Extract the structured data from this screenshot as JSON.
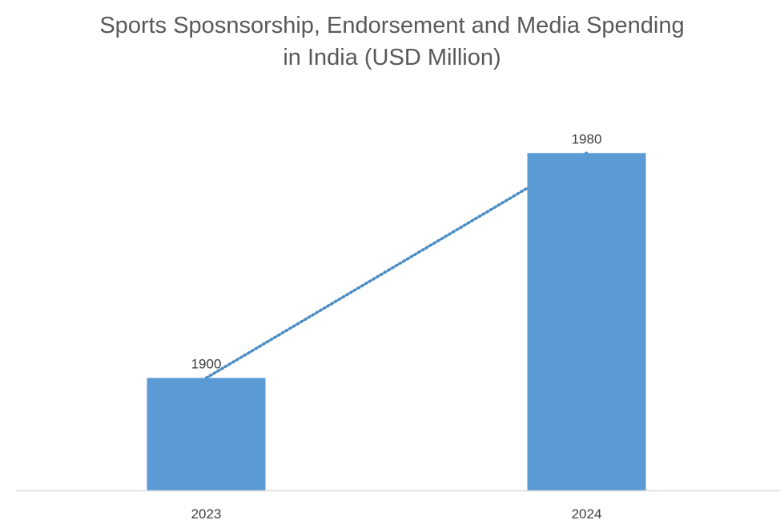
{
  "chart_data": {
    "type": "bar",
    "title_line1": "Sports Sposnsorship, Endorsement and Media Spending",
    "title_line2": "in India (USD Million)",
    "categories": [
      "2023",
      "2024"
    ],
    "values": [
      1900,
      1980
    ],
    "data_labels": [
      "1900",
      "1980"
    ],
    "xlabel": "",
    "ylabel": "",
    "ylim": [
      1860,
      2000
    ],
    "grid": false,
    "legend": "none",
    "trendline": {
      "type": "linear",
      "style": "dotted"
    },
    "colors": {
      "bar": "#5b9bd5",
      "trendline": "#4a8cc4",
      "axis": "#d9d9d9"
    }
  }
}
